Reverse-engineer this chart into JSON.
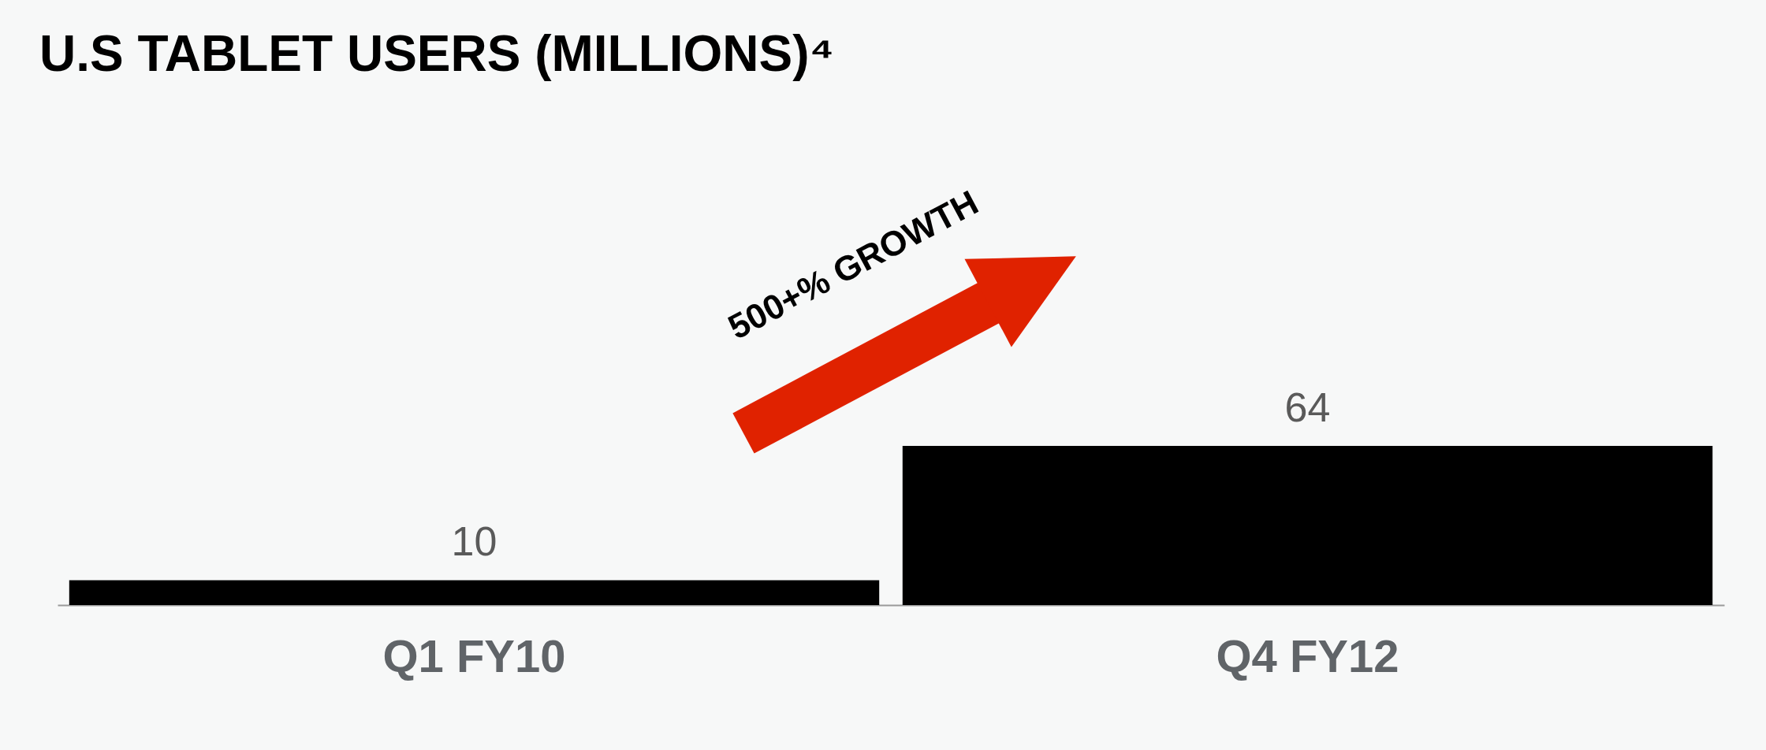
{
  "chart_data": {
    "type": "bar",
    "title": "U.S TABLET USERS (MILLIONS)⁴",
    "categories": [
      "Q1 FY10",
      "Q4 FY12"
    ],
    "values": [
      10,
      64
    ],
    "color": "#000000",
    "data_labels": true,
    "annotations": [
      "500+% GROWTH"
    ]
  }
}
